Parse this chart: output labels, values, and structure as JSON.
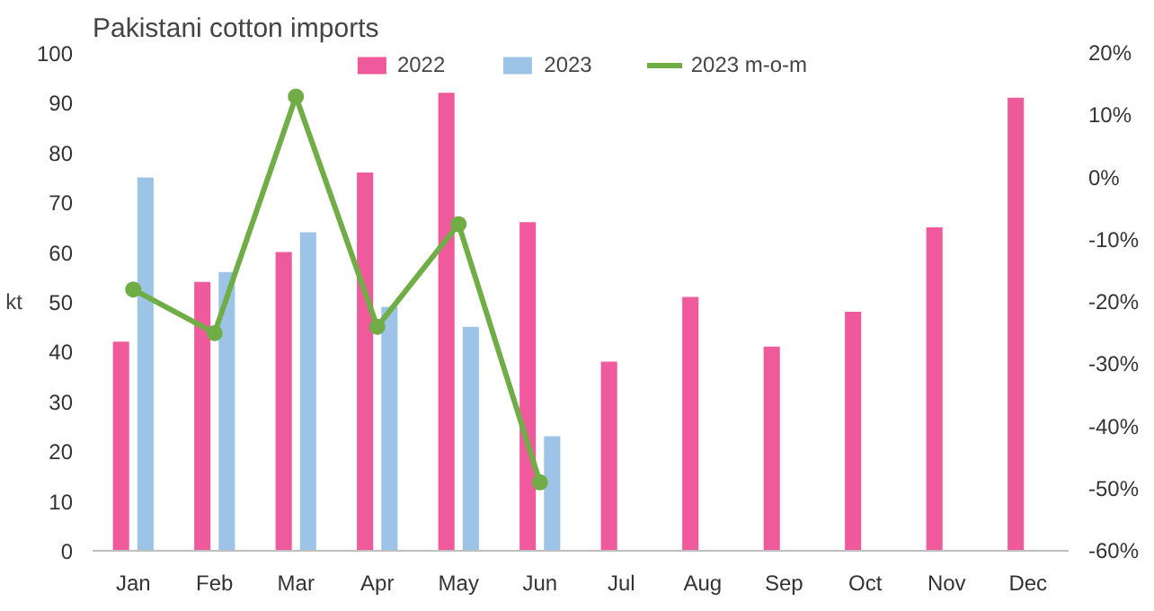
{
  "chart_data": {
    "type": "bar",
    "title": "Pakistani cotton imports",
    "ylabel": "kt",
    "categories": [
      "Jan",
      "Feb",
      "Mar",
      "Apr",
      "May",
      "Jun",
      "Jul",
      "Aug",
      "Sep",
      "Oct",
      "Nov",
      "Dec"
    ],
    "series": [
      {
        "name": "2022",
        "color": "#ee5a9c",
        "values": [
          42,
          54,
          60,
          76,
          92,
          66,
          38,
          51,
          41,
          48,
          65,
          91
        ]
      },
      {
        "name": "2023",
        "color": "#9dc3e6",
        "values": [
          75,
          56,
          64,
          49,
          45,
          23,
          null,
          null,
          null,
          null,
          null,
          null
        ]
      },
      {
        "name": "2023 m-o-m",
        "type": "line",
        "axis": "y2",
        "color": "#70ad47",
        "values": [
          -18,
          -25,
          13,
          -24,
          -7.5,
          -49,
          null,
          null,
          null,
          null,
          null,
          null
        ]
      }
    ],
    "ylim": [
      0,
      100
    ],
    "yticks": [
      0,
      10,
      20,
      30,
      40,
      50,
      60,
      70,
      80,
      90,
      100
    ],
    "y2lim": [
      -60,
      20
    ],
    "y2ticks": [
      {
        "value": -60,
        "label": "-60%"
      },
      {
        "value": -50,
        "label": "-50%"
      },
      {
        "value": -40,
        "label": "-40%"
      },
      {
        "value": -30,
        "label": "-30%"
      },
      {
        "value": -20,
        "label": "-20%"
      },
      {
        "value": -10,
        "label": "-10%"
      },
      {
        "value": 0,
        "label": "0%"
      },
      {
        "value": 10,
        "label": "10%"
      },
      {
        "value": 20,
        "label": "20%"
      }
    ],
    "grid": false,
    "legend": "top",
    "marker": "circle",
    "line_style": "solid"
  }
}
